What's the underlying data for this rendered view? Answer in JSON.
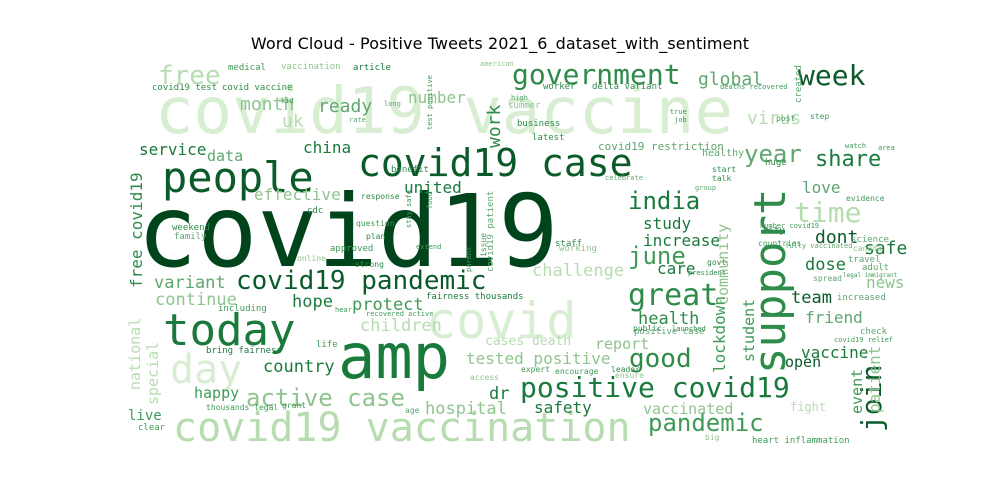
{
  "title": "Word Cloud - Positive Tweets 2021_6_dataset_with_sentiment",
  "colors": {
    "c1": "#00441b",
    "c2": "#0a5a2a",
    "c3": "#1a7a3c",
    "c4": "#2e8b4a",
    "c5": "#3f9a57",
    "c6": "#5fa66f",
    "c7": "#8fc48f",
    "c8": "#b6dcb0",
    "c9": "#d7eed2"
  },
  "words": [
    {
      "text": "covid19",
      "color": "c1"
    },
    {
      "text": "covid19 vaccine",
      "color": "c9"
    },
    {
      "text": "amp",
      "color": "c3"
    },
    {
      "text": "covid",
      "color": "c9"
    },
    {
      "text": "covid19 vaccination",
      "color": "c8"
    },
    {
      "text": "people",
      "color": "c2"
    },
    {
      "text": "today",
      "color": "c3"
    },
    {
      "text": "covid19 case",
      "color": "c2"
    },
    {
      "text": "day",
      "color": "c9"
    },
    {
      "text": "support",
      "color": "c4"
    },
    {
      "text": "positive covid19",
      "color": "c3"
    },
    {
      "text": "covid19 pandemic",
      "color": "c2"
    },
    {
      "text": "government",
      "color": "c4"
    },
    {
      "text": "week",
      "color": "c2"
    },
    {
      "text": "great",
      "color": "c4"
    },
    {
      "text": "active case",
      "color": "c7"
    },
    {
      "text": "good",
      "color": "c4"
    },
    {
      "text": "time",
      "color": "c8"
    },
    {
      "text": "join",
      "color": "c2"
    },
    {
      "text": "pandemic",
      "color": "c5"
    },
    {
      "text": "year",
      "color": "c6"
    },
    {
      "text": "share",
      "color": "c3"
    },
    {
      "text": "india",
      "color": "c3"
    },
    {
      "text": "june",
      "color": "c5"
    },
    {
      "text": "free",
      "color": "c8"
    },
    {
      "text": "free covid19",
      "color": "c4"
    },
    {
      "text": "month",
      "color": "c7"
    },
    {
      "text": "ready",
      "color": "c6"
    },
    {
      "text": "global",
      "color": "c6"
    },
    {
      "text": "uk",
      "color": "c8"
    },
    {
      "text": "virus",
      "color": "c8"
    },
    {
      "text": "work",
      "color": "c4"
    },
    {
      "text": "number",
      "color": "c7"
    },
    {
      "text": "covid19 test",
      "color": "c4"
    },
    {
      "text": "covid vaccine",
      "color": "c4"
    },
    {
      "text": "medical",
      "color": "c5"
    },
    {
      "text": "vaccination",
      "color": "c7"
    },
    {
      "text": "article",
      "color": "c3"
    },
    {
      "text": "american",
      "color": "c7"
    },
    {
      "text": "worker",
      "color": "c4"
    },
    {
      "text": "delta variant",
      "color": "c4"
    },
    {
      "text": "deaths recovered",
      "color": "c5"
    },
    {
      "text": "service",
      "color": "c3"
    },
    {
      "text": "data",
      "color": "c6"
    },
    {
      "text": "china",
      "color": "c3"
    },
    {
      "text": "covid19 restriction",
      "color": "c6"
    },
    {
      "text": "healthy",
      "color": "c6"
    },
    {
      "text": "united",
      "color": "c3"
    },
    {
      "text": "effective",
      "color": "c7"
    },
    {
      "text": "study",
      "color": "c3"
    },
    {
      "text": "increase",
      "color": "c3"
    },
    {
      "text": "dont",
      "color": "c2"
    },
    {
      "text": "safe",
      "color": "c3"
    },
    {
      "text": "love",
      "color": "c6"
    },
    {
      "text": "dose",
      "color": "c3"
    },
    {
      "text": "news",
      "color": "c7"
    },
    {
      "text": "care",
      "color": "c3"
    },
    {
      "text": "team",
      "color": "c2"
    },
    {
      "text": "friend",
      "color": "c6"
    },
    {
      "text": "variant",
      "color": "c6"
    },
    {
      "text": "continue",
      "color": "c7"
    },
    {
      "text": "hope",
      "color": "c3"
    },
    {
      "text": "protect",
      "color": "c5"
    },
    {
      "text": "fairness thousands",
      "color": "c3"
    },
    {
      "text": "health",
      "color": "c4"
    },
    {
      "text": "student",
      "color": "c5"
    },
    {
      "text": "lockdown",
      "color": "c5"
    },
    {
      "text": "open",
      "color": "c2"
    },
    {
      "text": "vaccine",
      "color": "c3"
    },
    {
      "text": "patient",
      "color": "c7"
    },
    {
      "text": "event",
      "color": "c5"
    },
    {
      "text": "country",
      "color": "c3"
    },
    {
      "text": "tested positive",
      "color": "c7"
    },
    {
      "text": "cases death",
      "color": "c8"
    },
    {
      "text": "report",
      "color": "c7"
    },
    {
      "text": "happy",
      "color": "c5"
    },
    {
      "text": "dr",
      "color": "c3"
    },
    {
      "text": "safety",
      "color": "c3"
    },
    {
      "text": "hospital",
      "color": "c7"
    },
    {
      "text": "vaccinated",
      "color": "c7"
    },
    {
      "text": "heart inflammation",
      "color": "c5"
    },
    {
      "text": "live",
      "color": "c5"
    },
    {
      "text": "clear",
      "color": "c5"
    },
    {
      "text": "national",
      "color": "c8"
    },
    {
      "text": "special",
      "color": "c8"
    },
    {
      "text": "weekend",
      "color": "c4"
    },
    {
      "text": "cdc",
      "color": "c4"
    },
    {
      "text": "approved",
      "color": "c5"
    },
    {
      "text": "children",
      "color": "c8"
    },
    {
      "text": "bring fairness",
      "color": "c3"
    },
    {
      "text": "thousands legal",
      "color": "c5"
    },
    {
      "text": "challenge",
      "color": "c8"
    },
    {
      "text": "positive case",
      "color": "c6"
    },
    {
      "text": "staff",
      "color": "c4"
    },
    {
      "text": "business",
      "color": "c4"
    },
    {
      "text": "latest",
      "color": "c4"
    },
    {
      "text": "benefit",
      "color": "c4"
    },
    {
      "text": "response",
      "color": "c4"
    },
    {
      "text": "including",
      "color": "c5"
    },
    {
      "text": "expert",
      "color": "c5"
    },
    {
      "text": "encourage",
      "color": "c5"
    },
    {
      "text": "leader",
      "color": "c4"
    },
    {
      "text": "access",
      "color": "c7"
    },
    {
      "text": "ensure",
      "color": "c7"
    },
    {
      "text": "public",
      "color": "c4"
    },
    {
      "text": "launched",
      "color": "c4"
    },
    {
      "text": "govt",
      "color": "c4"
    },
    {
      "text": "president",
      "color": "c4"
    },
    {
      "text": "start",
      "color": "c4"
    },
    {
      "text": "talk",
      "color": "c4"
    },
    {
      "text": "huge",
      "color": "c4"
    },
    {
      "text": "city",
      "color": "c4"
    },
    {
      "text": "increased",
      "color": "c6"
    },
    {
      "text": "check",
      "color": "c6"
    },
    {
      "text": "adult",
      "color": "c6"
    },
    {
      "text": "spread",
      "color": "c6"
    },
    {
      "text": "travel",
      "color": "c6"
    },
    {
      "text": "evidence",
      "color": "c5"
    },
    {
      "text": "science",
      "color": "c6"
    },
    {
      "text": "canada",
      "color": "c7"
    },
    {
      "text": "legal immigrant",
      "color": "c5"
    },
    {
      "text": "post",
      "color": "c5"
    },
    {
      "text": "step",
      "color": "c5"
    },
    {
      "text": "kid",
      "color": "c5"
    },
    {
      "text": "long",
      "color": "c6"
    },
    {
      "text": "summer",
      "color": "c7"
    },
    {
      "text": "true",
      "color": "c5"
    },
    {
      "text": "job",
      "color": "c5"
    },
    {
      "text": "rate",
      "color": "c6"
    },
    {
      "text": "area",
      "color": "c5"
    },
    {
      "text": "watch",
      "color": "c5"
    },
    {
      "text": "question",
      "color": "c5"
    },
    {
      "text": "plan",
      "color": "c4"
    },
    {
      "text": "extend",
      "color": "c5"
    },
    {
      "text": "strong",
      "color": "c4"
    },
    {
      "text": "grant",
      "color": "c5"
    },
    {
      "text": "age",
      "color": "c6"
    },
    {
      "text": "recovered active",
      "color": "c5"
    },
    {
      "text": "hear",
      "color": "c5"
    },
    {
      "text": "life",
      "color": "c5"
    },
    {
      "text": "family",
      "color": "c6"
    },
    {
      "text": "online",
      "color": "c7"
    },
    {
      "text": "community",
      "color": "c7"
    },
    {
      "text": "created",
      "color": "c6"
    },
    {
      "text": "covid19 patient",
      "color": "c6"
    },
    {
      "text": "issue",
      "color": "c5"
    },
    {
      "text": "parent",
      "color": "c5"
    },
    {
      "text": "stay safe",
      "color": "c5"
    },
    {
      "text": "food",
      "color": "c5"
    },
    {
      "text": "test positive",
      "color": "c5"
    },
    {
      "text": "working",
      "color": "c7"
    },
    {
      "text": "high",
      "color": "c6"
    },
    {
      "text": "number covid19",
      "color": "c5"
    },
    {
      "text": "fully vaccinated",
      "color": "c6"
    },
    {
      "text": "covid19 relief",
      "color": "c5"
    },
    {
      "text": "celebrate",
      "color": "c6"
    },
    {
      "text": "group",
      "color": "c6"
    },
    {
      "text": "countries",
      "color": "c5"
    },
    {
      "text": "big",
      "color": "c7"
    },
    {
      "text": "fight",
      "color": "c8"
    }
  ]
}
